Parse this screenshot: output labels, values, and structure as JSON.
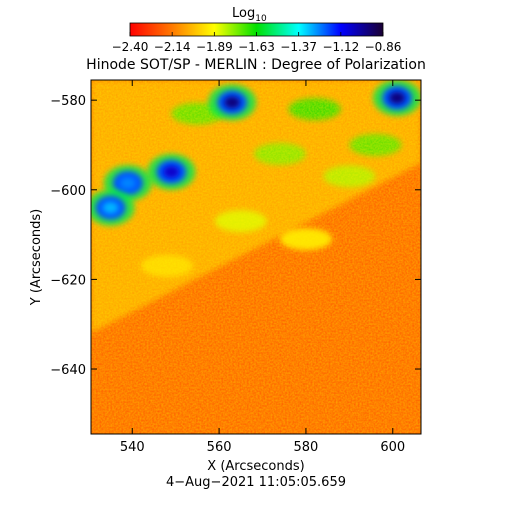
{
  "chart_data": {
    "type": "heatmap",
    "title": "Hinode SOT/SP - MERLIN : Degree of Polarization",
    "xlabel": "X (Arcseconds)",
    "ylabel": "Y (Arcseconds)",
    "footer": "4-Aug-2021 11:05:05.659",
    "xlim": [
      530.5,
      606.5
    ],
    "ylim": [
      -654.5,
      -575.5
    ],
    "x_ticks": [
      540,
      560,
      580,
      600
    ],
    "y_ticks": [
      -580,
      -600,
      -620,
      -640
    ],
    "colorbar": {
      "label_main": "Log",
      "label_sub": "10",
      "range": [
        -2.4,
        -0.86
      ],
      "tick_labels": [
        "-2.40",
        "-2.14",
        "-1.89",
        "-1.63",
        "-1.37",
        "-1.12",
        "-0.86"
      ],
      "colors": [
        "#ff0000",
        "#ff7a00",
        "#ffff00",
        "#00e000",
        "#00ffff",
        "#0000ff",
        "#1a0033"
      ]
    },
    "strong_regions": [
      {
        "x": 563,
        "y": -580.5,
        "level": -0.95
      },
      {
        "x": 601,
        "y": -579.5,
        "level": -0.95
      },
      {
        "x": 549,
        "y": -596,
        "level": -1.05
      },
      {
        "x": 539,
        "y": -598.5,
        "level": -1.25
      },
      {
        "x": 535,
        "y": -604,
        "level": -1.3
      }
    ],
    "moderate_regions": [
      {
        "x": 555,
        "y": -583,
        "level": -1.7
      },
      {
        "x": 582,
        "y": -582,
        "level": -1.65
      },
      {
        "x": 574,
        "y": -592,
        "level": -1.75
      },
      {
        "x": 590,
        "y": -597,
        "level": -1.8
      },
      {
        "x": 565,
        "y": -607,
        "level": -1.85
      },
      {
        "x": 580,
        "y": -611,
        "level": -1.9
      },
      {
        "x": 548,
        "y": -617,
        "level": -1.95
      },
      {
        "x": 596,
        "y": -590,
        "level": -1.7
      }
    ],
    "grid": false
  }
}
